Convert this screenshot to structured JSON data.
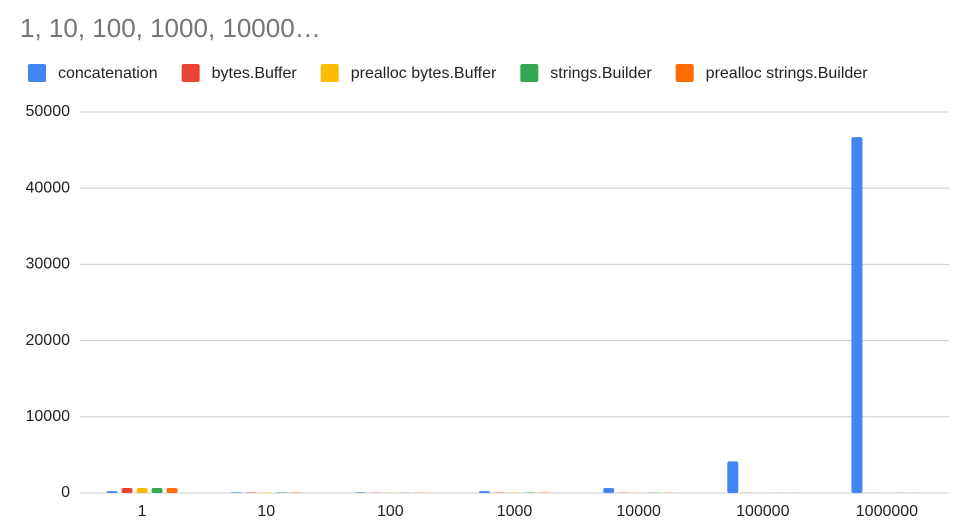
{
  "chart_data": {
    "type": "bar",
    "title": "1, 10, 100, 1000, 10000…",
    "categories": [
      "1",
      "10",
      "100",
      "1000",
      "10000",
      "100000",
      "1000000"
    ],
    "series": [
      {
        "name": "concatenation",
        "color": "#4285f4",
        "values": [
          250,
          80,
          80,
          250,
          650,
          4150,
          46700
        ]
      },
      {
        "name": "bytes.Buffer",
        "color": "#ea4335",
        "values": [
          650,
          60,
          40,
          50,
          30,
          20,
          20
        ]
      },
      {
        "name": "prealloc bytes.Buffer",
        "color": "#fbbc04",
        "values": [
          650,
          60,
          40,
          50,
          30,
          20,
          20
        ]
      },
      {
        "name": "strings.Builder",
        "color": "#34a853",
        "values": [
          650,
          60,
          40,
          50,
          30,
          20,
          20
        ]
      },
      {
        "name": "prealloc strings.Builder",
        "color": "#ff6d01",
        "values": [
          650,
          60,
          40,
          50,
          30,
          20,
          20
        ]
      }
    ],
    "ylim": [
      0,
      50000
    ],
    "yticks": [
      0,
      10000,
      20000,
      30000,
      40000,
      50000
    ],
    "grid": true
  }
}
